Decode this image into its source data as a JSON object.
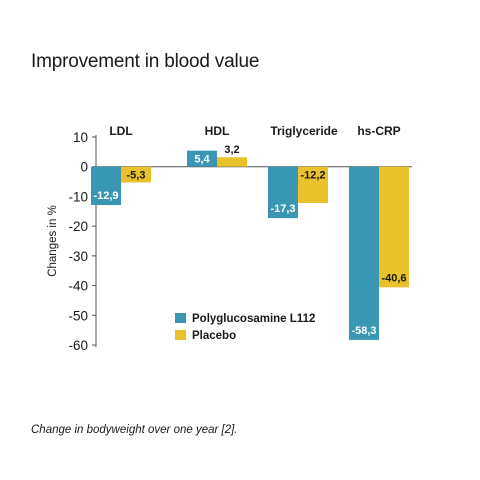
{
  "title": "Improvement in blood value",
  "caption": "Change in bodyweight over one year [2].",
  "chart_data": {
    "type": "bar",
    "categories": [
      "LDL",
      "HDL",
      "Triglyceride",
      "hs-CRP"
    ],
    "series": [
      {
        "name": "Polyglucosamine L112",
        "color": "#3a97b3",
        "values": [
          -12.9,
          5.4,
          -17.3,
          -58.3
        ],
        "labels": [
          "-12,9",
          "5,4",
          "-17,3",
          "-58,3"
        ]
      },
      {
        "name": "Placebo",
        "color": "#e9c12a",
        "values": [
          -5.3,
          3.2,
          -12.2,
          -40.6
        ],
        "labels": [
          "-5,3",
          "3,2",
          "-12,2",
          "-40,6"
        ]
      }
    ],
    "ylabel": "Changes in %",
    "ylim": [
      -60,
      10
    ],
    "yticks": [
      10,
      0,
      -10,
      -20,
      -30,
      -40,
      -50,
      -60
    ],
    "legend_position": "lower-center",
    "grid": false
  }
}
